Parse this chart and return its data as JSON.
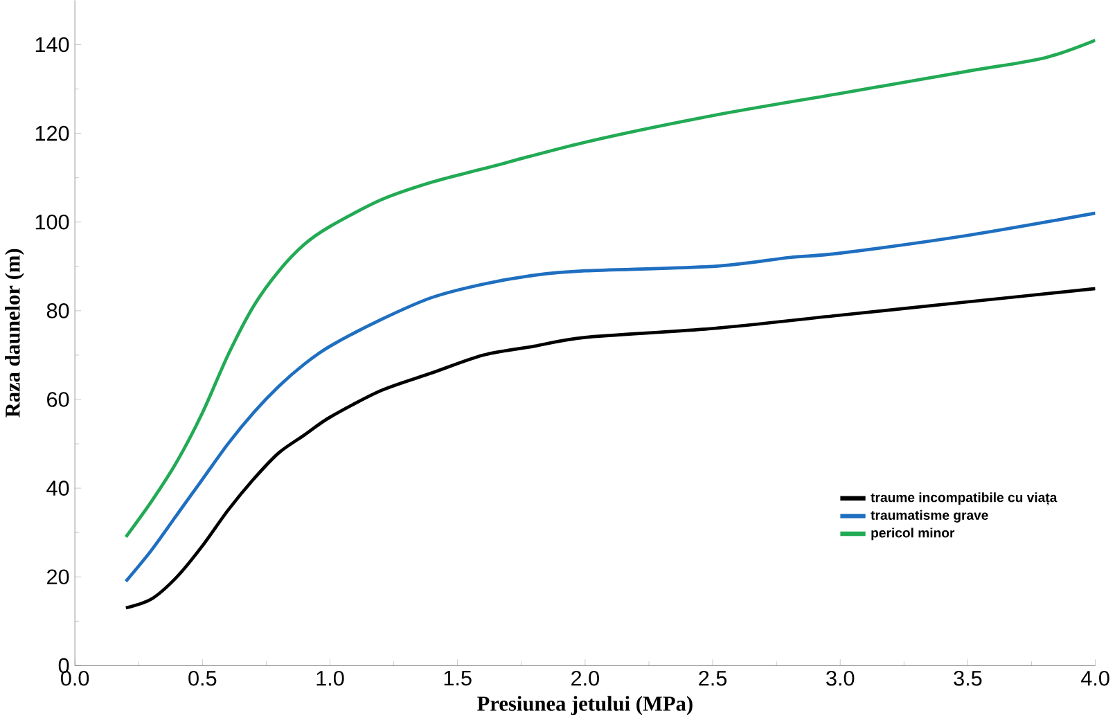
{
  "chart_data": {
    "type": "line",
    "xlabel": "Presiunea jetului (MPa)",
    "ylabel": "Raza daunelor (m)",
    "xlim": [
      0,
      4
    ],
    "ylim": [
      0,
      150
    ],
    "xticks": [
      {
        "value": 0,
        "label": "0.0"
      },
      {
        "value": 0.5,
        "label": "0.5"
      },
      {
        "value": 1,
        "label": "1.0"
      },
      {
        "value": 1.5,
        "label": "1.5"
      },
      {
        "value": 2,
        "label": "2.0"
      },
      {
        "value": 2.5,
        "label": "2.5"
      },
      {
        "value": 3,
        "label": "3.0"
      },
      {
        "value": 3.5,
        "label": "3.5"
      },
      {
        "value": 4,
        "label": "4.0"
      }
    ],
    "yticks": [
      0,
      20,
      40,
      60,
      80,
      100,
      120,
      140
    ],
    "legend": "bottom right",
    "grid": false,
    "marker": "none",
    "line_style": "solid",
    "series": [
      {
        "name": "traume incompatibile cu viața",
        "color": "#000000",
        "x": [
          0.2,
          0.3,
          0.4,
          0.5,
          0.6,
          0.7,
          0.8,
          0.9,
          1.0,
          1.2,
          1.4,
          1.6,
          1.8,
          2.0,
          2.5,
          3.0,
          3.5,
          4.0
        ],
        "values": [
          13,
          15,
          20,
          27,
          35,
          42,
          48,
          52,
          56,
          62,
          66,
          70,
          72,
          74,
          76,
          79,
          82,
          85
        ]
      },
      {
        "name": "traumatisme grave",
        "color": "#1f6fc0",
        "x": [
          0.2,
          0.3,
          0.4,
          0.5,
          0.6,
          0.7,
          0.8,
          0.9,
          1.0,
          1.2,
          1.4,
          1.6,
          1.8,
          2.0,
          2.5,
          2.8,
          3.0,
          3.5,
          4.0
        ],
        "values": [
          19,
          26,
          34,
          42,
          50,
          57,
          63,
          68,
          72,
          78,
          83,
          86,
          88,
          89,
          90,
          92,
          93,
          97,
          102
        ]
      },
      {
        "name": "pericol minor",
        "color": "#22aa55",
        "x": [
          0.2,
          0.3,
          0.4,
          0.5,
          0.6,
          0.7,
          0.8,
          0.9,
          1.0,
          1.2,
          1.4,
          1.6,
          2.0,
          2.5,
          3.0,
          3.5,
          3.8,
          4.0
        ],
        "values": [
          29,
          37,
          46,
          57,
          70,
          81,
          89,
          95,
          99,
          105,
          109,
          112,
          118,
          124,
          129,
          134,
          137,
          141
        ]
      }
    ]
  }
}
